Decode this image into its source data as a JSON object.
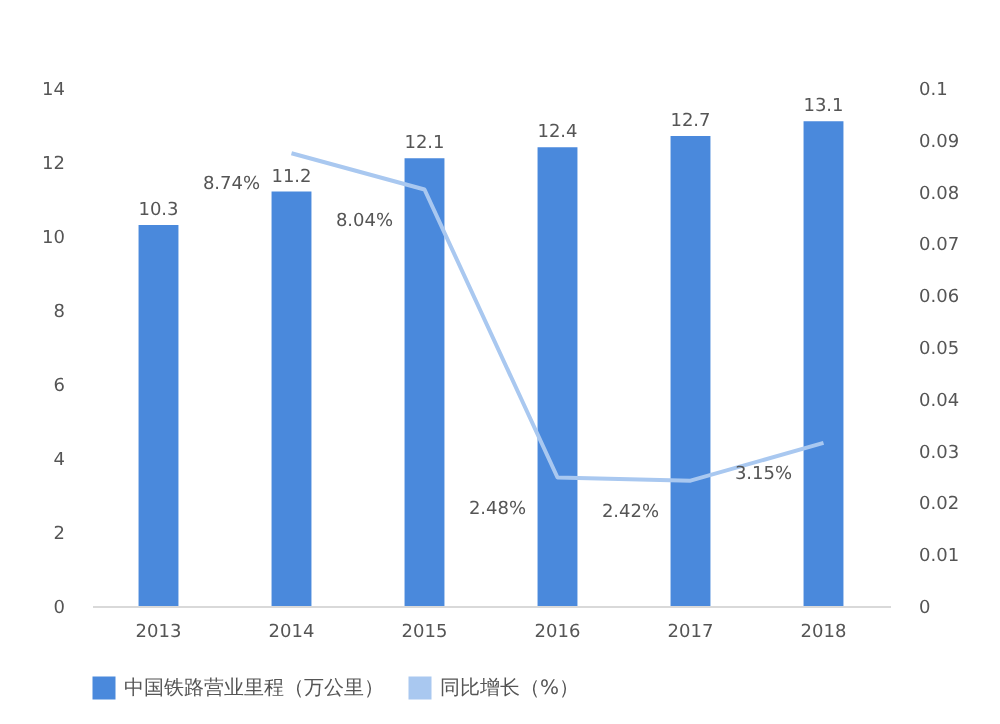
{
  "chart_data": {
    "type": "bar",
    "categories": [
      "2013",
      "2014",
      "2015",
      "2016",
      "2017",
      "2018"
    ],
    "series": [
      {
        "name": "中国铁路营业里程（万公里）",
        "color": "#4a89dc",
        "values": [
          10.3,
          11.2,
          12.1,
          12.4,
          12.7,
          13.1
        ],
        "data_labels": true
      },
      {
        "name": "同比增长（%）",
        "type": "line",
        "axis": "y2",
        "color": "#a9c8f0",
        "values": [
          null,
          0.0874,
          0.0804,
          0.0248,
          0.0242,
          0.0315
        ],
        "value_labels": [
          null,
          "8.74%",
          "8.04%",
          "2.48%",
          "2.42%",
          "3.15%"
        ]
      }
    ],
    "ylim": [
      0,
      14
    ],
    "yticks": [
      0,
      2,
      4,
      6,
      8,
      10,
      12,
      14
    ],
    "y2lim": [
      0,
      0.1
    ],
    "y2ticks": [
      0,
      0.01,
      0.02,
      0.03,
      0.04,
      0.05,
      0.06,
      0.07,
      0.08,
      0.09,
      0.1
    ],
    "grid": false,
    "legend": "bottom",
    "marker": "none"
  }
}
